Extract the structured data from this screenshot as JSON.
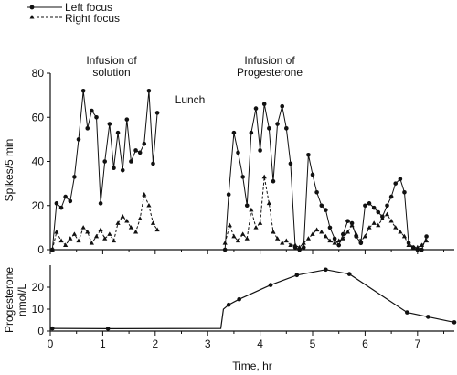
{
  "chart_data": [
    {
      "type": "line",
      "title": "",
      "xlabel": "",
      "ylabel": "Spikes/5 min",
      "xlim": [
        0,
        7.7
      ],
      "ylim": [
        0,
        80
      ],
      "yticks": [
        0,
        20,
        40,
        60,
        80
      ],
      "grid": false,
      "legend_placement": "top-left",
      "annotations": [
        {
          "lines": [
            "Infusion of",
            "solution"
          ],
          "x": 1.45
        },
        {
          "lines": [
            "Lunch"
          ],
          "x": 2.7
        },
        {
          "lines": [
            "Infusion of",
            "Progesterone"
          ],
          "x": 4.5
        }
      ],
      "series": [
        {
          "name": "Left focus",
          "style": "solid",
          "marker": "circle",
          "color": "#111111",
          "segments": [
            [
              [
                0.04,
                0
              ],
              [
                0.12,
                21
              ],
              [
                0.21,
                19
              ],
              [
                0.29,
                24
              ],
              [
                0.38,
                22
              ],
              [
                0.46,
                33
              ],
              [
                0.54,
                50
              ],
              [
                0.63,
                72
              ],
              [
                0.71,
                55
              ],
              [
                0.79,
                63
              ],
              [
                0.88,
                60
              ],
              [
                0.96,
                21
              ],
              [
                1.04,
                40
              ],
              [
                1.13,
                57
              ],
              [
                1.21,
                37
              ],
              [
                1.29,
                53
              ],
              [
                1.38,
                36
              ],
              [
                1.46,
                59
              ],
              [
                1.54,
                40
              ],
              [
                1.63,
                45
              ],
              [
                1.71,
                44
              ],
              [
                1.79,
                48
              ],
              [
                1.88,
                72
              ],
              [
                1.96,
                39
              ],
              [
                2.04,
                62
              ]
            ],
            [
              [
                3.33,
                0
              ],
              [
                3.4,
                25
              ],
              [
                3.5,
                53
              ],
              [
                3.58,
                44
              ],
              [
                3.67,
                33
              ],
              [
                3.75,
                20
              ],
              [
                3.83,
                53
              ],
              [
                3.92,
                64
              ],
              [
                4.0,
                45
              ],
              [
                4.08,
                66
              ],
              [
                4.17,
                55
              ],
              [
                4.25,
                31
              ],
              [
                4.33,
                57
              ],
              [
                4.42,
                65
              ],
              [
                4.5,
                55
              ],
              [
                4.58,
                39
              ],
              [
                4.67,
                1
              ],
              [
                4.75,
                0
              ],
              [
                4.83,
                1
              ],
              [
                4.92,
                43
              ],
              [
                5.0,
                34
              ],
              [
                5.08,
                26
              ],
              [
                5.17,
                20
              ],
              [
                5.25,
                18
              ],
              [
                5.33,
                10
              ],
              [
                5.42,
                5
              ],
              [
                5.5,
                2
              ],
              [
                5.58,
                7
              ],
              [
                5.67,
                13
              ],
              [
                5.75,
                12
              ],
              [
                5.83,
                6
              ],
              [
                5.92,
                3
              ],
              [
                6.0,
                20
              ],
              [
                6.08,
                21
              ],
              [
                6.17,
                19
              ],
              [
                6.25,
                17
              ],
              [
                6.33,
                15
              ],
              [
                6.42,
                20
              ],
              [
                6.5,
                24
              ],
              [
                6.58,
                30
              ],
              [
                6.67,
                32
              ],
              [
                6.75,
                26
              ],
              [
                6.83,
                3
              ],
              [
                6.92,
                1
              ],
              [
                7.0,
                0
              ],
              [
                7.08,
                0
              ],
              [
                7.17,
                6
              ]
            ]
          ]
        },
        {
          "name": "Right focus",
          "style": "dashed",
          "marker": "triangle",
          "color": "#111111",
          "segments": [
            [
              [
                0.04,
                0
              ],
              [
                0.12,
                8
              ],
              [
                0.21,
                4
              ],
              [
                0.29,
                2
              ],
              [
                0.38,
                5
              ],
              [
                0.46,
                7
              ],
              [
                0.54,
                4
              ],
              [
                0.63,
                10
              ],
              [
                0.71,
                8
              ],
              [
                0.79,
                3
              ],
              [
                0.88,
                6
              ],
              [
                0.96,
                9
              ],
              [
                1.04,
                5
              ],
              [
                1.13,
                7
              ],
              [
                1.21,
                4
              ],
              [
                1.29,
                12
              ],
              [
                1.38,
                15
              ],
              [
                1.46,
                13
              ],
              [
                1.54,
                10
              ],
              [
                1.63,
                8
              ],
              [
                1.71,
                14
              ],
              [
                1.79,
                25
              ],
              [
                1.88,
                20
              ],
              [
                1.96,
                12
              ],
              [
                2.04,
                9
              ]
            ],
            [
              [
                3.33,
                3
              ],
              [
                3.42,
                11
              ],
              [
                3.5,
                6
              ],
              [
                3.58,
                4
              ],
              [
                3.67,
                7
              ],
              [
                3.75,
                5
              ],
              [
                3.83,
                18
              ],
              [
                3.92,
                10
              ],
              [
                4.0,
                12
              ],
              [
                4.08,
                33
              ],
              [
                4.17,
                21
              ],
              [
                4.25,
                8
              ],
              [
                4.33,
                5
              ],
              [
                4.42,
                3
              ],
              [
                4.5,
                4
              ],
              [
                4.58,
                2
              ],
              [
                4.67,
                2
              ],
              [
                4.75,
                1
              ],
              [
                4.83,
                3
              ],
              [
                4.92,
                5
              ],
              [
                5.0,
                7
              ],
              [
                5.08,
                9
              ],
              [
                5.17,
                8
              ],
              [
                5.25,
                6
              ],
              [
                5.33,
                4
              ],
              [
                5.42,
                3
              ],
              [
                5.5,
                4
              ],
              [
                5.58,
                5
              ],
              [
                5.67,
                8
              ],
              [
                5.75,
                11
              ],
              [
                5.83,
                7
              ],
              [
                5.92,
                4
              ],
              [
                6.0,
                6
              ],
              [
                6.08,
                10
              ],
              [
                6.17,
                12
              ],
              [
                6.25,
                11
              ],
              [
                6.33,
                14
              ],
              [
                6.42,
                16
              ],
              [
                6.5,
                13
              ],
              [
                6.58,
                10
              ],
              [
                6.67,
                8
              ],
              [
                6.75,
                6
              ],
              [
                6.83,
                2
              ],
              [
                6.92,
                1
              ],
              [
                7.0,
                1
              ],
              [
                7.08,
                2
              ],
              [
                7.17,
                4
              ]
            ]
          ]
        }
      ]
    },
    {
      "type": "line",
      "title": "",
      "xlabel": "Time, hr",
      "ylabel": "Progesterone",
      "ylabel_unit": "nmol/L",
      "xlim": [
        0,
        7.7
      ],
      "ylim": [
        0,
        30
      ],
      "xticks": [
        0,
        1,
        2,
        3,
        4,
        5,
        6,
        7
      ],
      "yticks": [
        0,
        10,
        20
      ],
      "grid": false,
      "series": [
        {
          "style": "solid",
          "marker": "circle",
          "color": "#111111",
          "points": [
            [
              0.04,
              1.2
            ],
            [
              1.1,
              1.1
            ],
            [
              3.25,
              1.2
            ],
            [
              3.3,
              10
            ],
            [
              3.4,
              12
            ],
            [
              3.6,
              14.5
            ],
            [
              4.2,
              21
            ],
            [
              4.7,
              25.5
            ],
            [
              5.25,
              28
            ],
            [
              5.7,
              26
            ],
            [
              6.8,
              8.5
            ],
            [
              7.2,
              6.5
            ],
            [
              7.7,
              4
            ]
          ]
        }
      ]
    }
  ]
}
